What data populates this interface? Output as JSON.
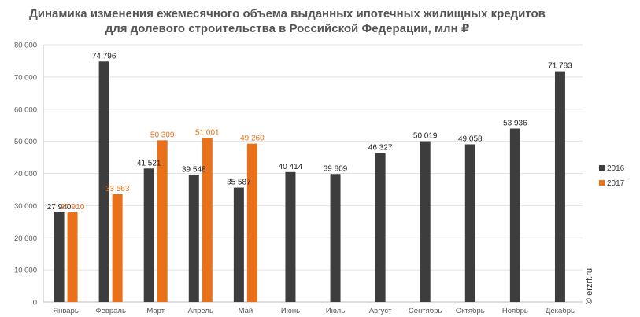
{
  "chart_data": {
    "type": "bar",
    "title_line1": "Динамика изменения ежемесячного объема выданных ипотечных жилищных кредитов",
    "title_line2": "для долевого строительства  в Российской  Федерации, млн ₽",
    "categories": [
      "Январь",
      "Февраль",
      "Март",
      "Апрель",
      "Май",
      "Июнь",
      "Июль",
      "Август",
      "Сентябрь",
      "Октябрь",
      "Ноябрь",
      "Декабрь"
    ],
    "series": [
      {
        "name": "2016",
        "color": "#3d3d3d",
        "label_color": "#222222",
        "values": [
          27940,
          74796,
          41521,
          39548,
          35587,
          40414,
          39809,
          46327,
          50019,
          49058,
          53936,
          71783
        ],
        "value_labels": [
          "27 940",
          "74 796",
          "41 521",
          "39 548",
          "35 587",
          "40 414",
          "39 809",
          "46 327",
          "50 019",
          "49 058",
          "53 936",
          "71 783"
        ]
      },
      {
        "name": "2017",
        "color": "#e8711a",
        "label_color": "#e8711a",
        "values": [
          27910,
          33563,
          50309,
          51001,
          49260,
          null,
          null,
          null,
          null,
          null,
          null,
          null
        ],
        "value_labels": [
          "27 910",
          "33 563",
          "50 309",
          "51 001",
          "49 260",
          "",
          "",
          "",
          "",
          "",
          "",
          ""
        ]
      }
    ],
    "ylim": [
      0,
      80000
    ],
    "yticks": [
      0,
      10000,
      20000,
      30000,
      40000,
      50000,
      60000,
      70000,
      80000
    ],
    "ytick_labels": [
      "0",
      "10 000",
      "20 000",
      "30 000",
      "40 000",
      "50 000",
      "60 000",
      "70 000",
      "80 000"
    ],
    "grid": true,
    "legend_position": "right",
    "watermark": "© erzrf.ru"
  }
}
